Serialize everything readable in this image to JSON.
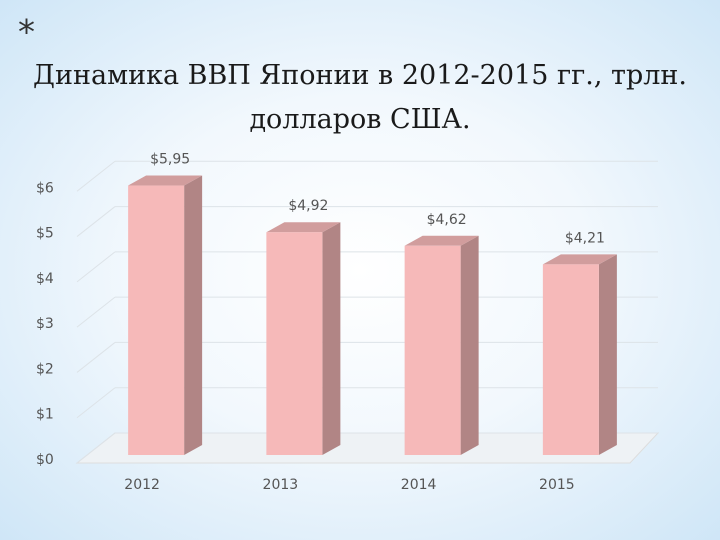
{
  "marker": "*",
  "chart_data": {
    "type": "bar",
    "title": "Динамика ВВП Японии в 2012-2015 гг., трлн. долларов США.",
    "categories": [
      "2012",
      "2013",
      "2014",
      "2015"
    ],
    "values": [
      5.95,
      4.92,
      4.62,
      4.21
    ],
    "value_labels": [
      "$5,95",
      "$4,92",
      "$4,62",
      "$4,21"
    ],
    "color": "#f6b9b9",
    "ylim": [
      0,
      7
    ],
    "yticks": [
      {
        "value": 0,
        "label": "$0"
      },
      {
        "value": 1,
        "label": "$1"
      },
      {
        "value": 2,
        "label": "$2"
      },
      {
        "value": 3,
        "label": "$3"
      },
      {
        "value": 4,
        "label": "$4"
      },
      {
        "value": 5,
        "label": "$5"
      },
      {
        "value": 6,
        "label": "$6"
      }
    ],
    "grid": true
  }
}
